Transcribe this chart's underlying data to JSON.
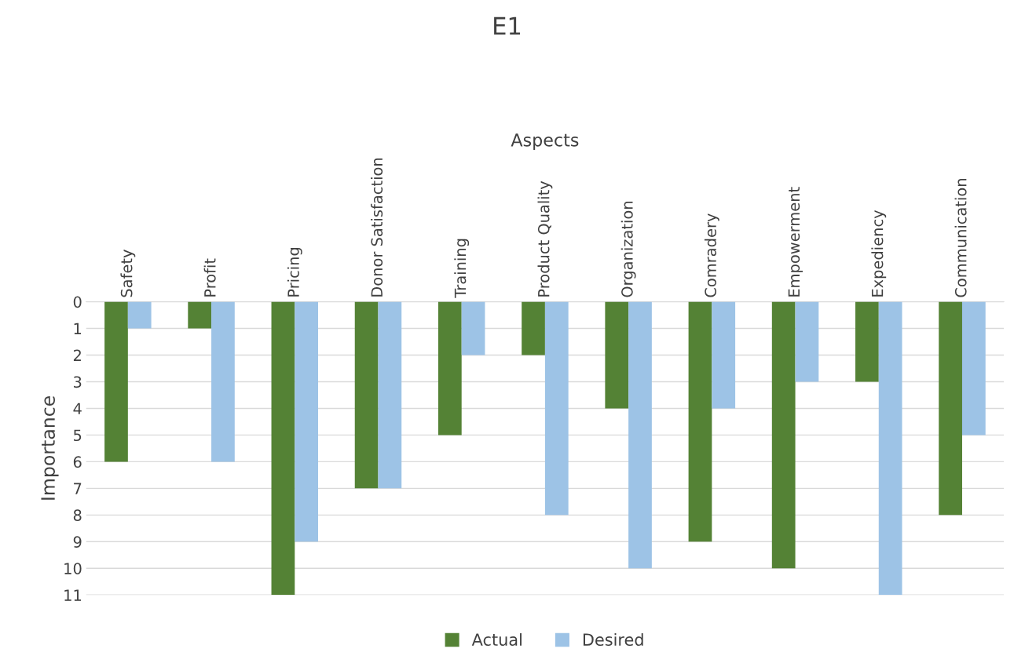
{
  "chart_data": {
    "type": "bar",
    "title": "E1",
    "xlabel": "Aspects",
    "ylabel": "Importance",
    "categories": [
      "Safety",
      "Profit",
      "Pricing",
      "Donor Satisfaction",
      "Training",
      "Product Quality",
      "Organization",
      "Comradery",
      "Empowerment",
      "Expediency",
      "Communication"
    ],
    "series": [
      {
        "name": "Actual",
        "color": "#548235",
        "values": [
          6,
          1,
          11,
          7,
          5,
          2,
          4,
          9,
          10,
          3,
          8
        ]
      },
      {
        "name": "Desired",
        "color": "#9dc3e6",
        "values": [
          1,
          6,
          9,
          7,
          2,
          8,
          10,
          4,
          3,
          11,
          5
        ]
      }
    ],
    "ylim": [
      11,
      0
    ],
    "yticks": [
      0,
      1,
      2,
      3,
      4,
      5,
      6,
      7,
      8,
      9,
      10,
      11
    ],
    "grid": "y",
    "legend": "bottom"
  }
}
